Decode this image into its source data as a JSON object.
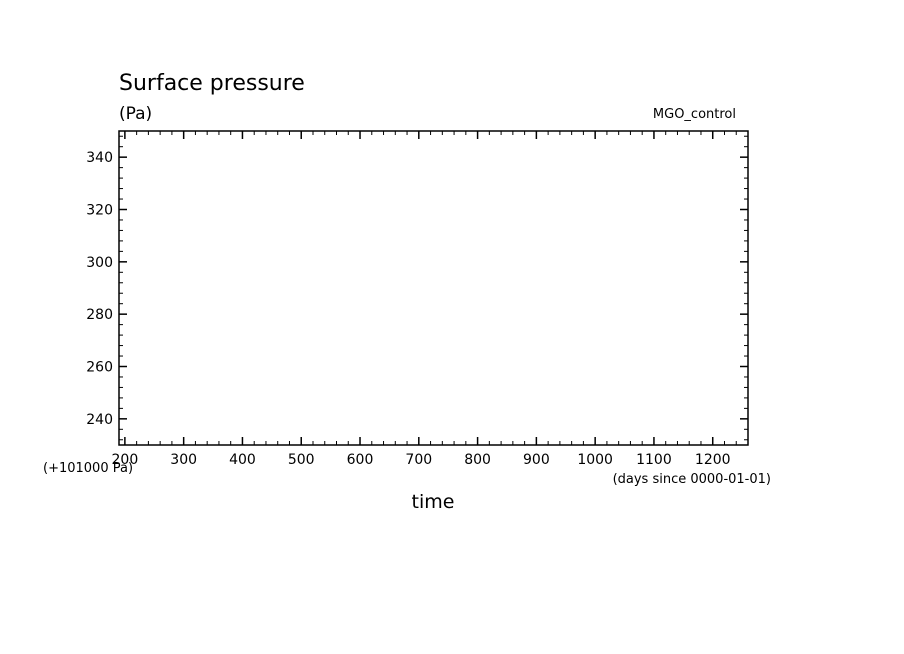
{
  "chart_data": {
    "type": "line",
    "title": "Surface pressure",
    "units_label": "(Pa)",
    "run_label": "MGO_control",
    "xlabel": "time",
    "x_units_label": "(days since 0000-01-01)",
    "y_offset_label": "(+101000 Pa)",
    "xlim": [
      190,
      1260
    ],
    "ylim": [
      230,
      350
    ],
    "x_ticks": [
      200,
      300,
      400,
      500,
      600,
      700,
      800,
      900,
      1000,
      1100,
      1200
    ],
    "x_tick_labels": [
      "200",
      "300",
      "400",
      "500",
      "600",
      "700",
      "800",
      "900",
      "1000",
      "1100",
      "1200"
    ],
    "x_minor_step": 20,
    "y_ticks": [
      240,
      260,
      280,
      300,
      320,
      340
    ],
    "y_tick_labels": [
      "240",
      "260",
      "280",
      "300",
      "320",
      "340"
    ],
    "y_minor_step": 4,
    "grid": false,
    "series": []
  }
}
